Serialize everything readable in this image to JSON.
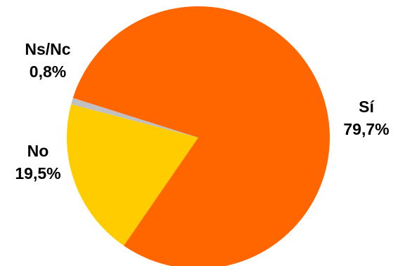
{
  "chart_data": {
    "type": "pie",
    "title": "",
    "slices": [
      {
        "category": "Sí",
        "value": 79.7,
        "value_label": "79,7%",
        "color": "#FF6600"
      },
      {
        "category": "No",
        "value": 19.5,
        "value_label": "19,5%",
        "color": "#FFCC00"
      },
      {
        "category": "Ns/Nc",
        "value": 0.8,
        "value_label": "0,8%",
        "color": "#C0C0C0"
      }
    ],
    "legend": "none"
  }
}
